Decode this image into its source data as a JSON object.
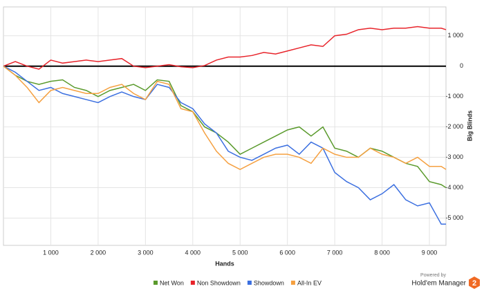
{
  "chart_data": {
    "type": "line",
    "x_label": "Hands",
    "y_label": "Big Blinds",
    "x": [
      0,
      250,
      500,
      750,
      1000,
      1250,
      1500,
      1750,
      2000,
      2250,
      2500,
      2750,
      3000,
      3250,
      3500,
      3750,
      4000,
      4250,
      4500,
      4750,
      5000,
      5250,
      5500,
      5750,
      6000,
      6250,
      6500,
      6750,
      7000,
      7250,
      7500,
      7750,
      8000,
      8250,
      8500,
      8750,
      9000,
      9250,
      9350
    ],
    "series": [
      {
        "name": "Net Won",
        "color": "#5a9a2c",
        "values": [
          0,
          -300,
          -500,
          -600,
          -500,
          -450,
          -700,
          -800,
          -1000,
          -800,
          -700,
          -600,
          -800,
          -450,
          -500,
          -1300,
          -1500,
          -2000,
          -2200,
          -2500,
          -2900,
          -2700,
          -2500,
          -2300,
          -2100,
          -2000,
          -2300,
          -2000,
          -2700,
          -2800,
          -3000,
          -2700,
          -2800,
          -3000,
          -3200,
          -3300,
          -3800,
          -3900,
          -4000
        ]
      },
      {
        "name": "Non Showdown",
        "color": "#e8232a",
        "values": [
          0,
          150,
          0,
          -100,
          200,
          100,
          150,
          200,
          150,
          200,
          250,
          0,
          -50,
          0,
          50,
          -20,
          -50,
          20,
          200,
          300,
          300,
          350,
          450,
          400,
          500,
          600,
          700,
          650,
          1000,
          1050,
          1200,
          1250,
          1200,
          1250,
          1250,
          1300,
          1250,
          1250,
          1200
        ]
      },
      {
        "name": "Showdown",
        "color": "#3b6fe0",
        "values": [
          0,
          -200,
          -500,
          -800,
          -700,
          -900,
          -1000,
          -1100,
          -1200,
          -1000,
          -850,
          -1000,
          -1100,
          -600,
          -700,
          -1200,
          -1400,
          -1900,
          -2200,
          -2800,
          -3000,
          -3100,
          -2900,
          -2700,
          -2600,
          -2900,
          -2500,
          -2700,
          -3500,
          -3800,
          -4000,
          -4400,
          -4200,
          -3900,
          -4400,
          -4600,
          -4500,
          -5200,
          -5200
        ]
      },
      {
        "name": "All-In EV",
        "color": "#f5a040",
        "values": [
          0,
          -300,
          -700,
          -1200,
          -800,
          -700,
          -800,
          -900,
          -900,
          -700,
          -600,
          -900,
          -1100,
          -500,
          -600,
          -1400,
          -1500,
          -2200,
          -2800,
          -3200,
          -3400,
          -3200,
          -3000,
          -2900,
          -2900,
          -3000,
          -3200,
          -2700,
          -2900,
          -3000,
          -3000,
          -2700,
          -2900,
          -3000,
          -3200,
          -3000,
          -3300,
          -3300,
          -3400
        ]
      }
    ],
    "xlim": [
      0,
      9350
    ],
    "ylim": [
      -5900,
      1950
    ],
    "xticks": [
      {
        "value": 1000,
        "label": "1 000"
      },
      {
        "value": 2000,
        "label": "2 000"
      },
      {
        "value": 3000,
        "label": "3 000"
      },
      {
        "value": 4000,
        "label": "4 000"
      },
      {
        "value": 5000,
        "label": "5 000"
      },
      {
        "value": 6000,
        "label": "6 000"
      },
      {
        "value": 7000,
        "label": "7 000"
      },
      {
        "value": 8000,
        "label": "8 000"
      },
      {
        "value": 9000,
        "label": "9 000"
      }
    ],
    "yticks": [
      {
        "value": 1000,
        "label": "1 000"
      },
      0,
      {
        "value": -1000,
        "label": "-1 000"
      },
      {
        "value": -2000,
        "label": "-2 000"
      },
      {
        "value": -3000,
        "label": "-3 000"
      },
      {
        "value": -4000,
        "label": "-4 000"
      },
      {
        "value": -5000,
        "label": "-5 000"
      }
    ],
    "grid": true,
    "zero_line": true,
    "legend": "bottom"
  },
  "branding": {
    "powered": "Powered by",
    "product": "Hold'em Manager",
    "badge": "2"
  }
}
